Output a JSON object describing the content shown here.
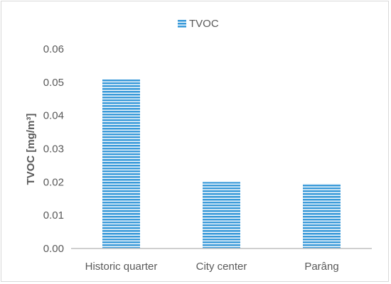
{
  "chart_data": {
    "type": "bar",
    "categories": [
      "Historic quarter",
      "City center",
      "Parâng"
    ],
    "series": [
      {
        "name": "TVOC",
        "values": [
          0.051,
          0.02,
          0.0195
        ]
      }
    ],
    "title": "",
    "xlabel": "",
    "ylabel": "TVOC [mg/m³]",
    "ylim": [
      0,
      0.06
    ],
    "yticks": [
      "0.00",
      "0.01",
      "0.02",
      "0.03",
      "0.04",
      "0.05",
      "0.06"
    ],
    "legend_position": "top-center",
    "grid": false,
    "bar_color": "#3399dd",
    "bar_pattern": "horizontal-stripes"
  }
}
